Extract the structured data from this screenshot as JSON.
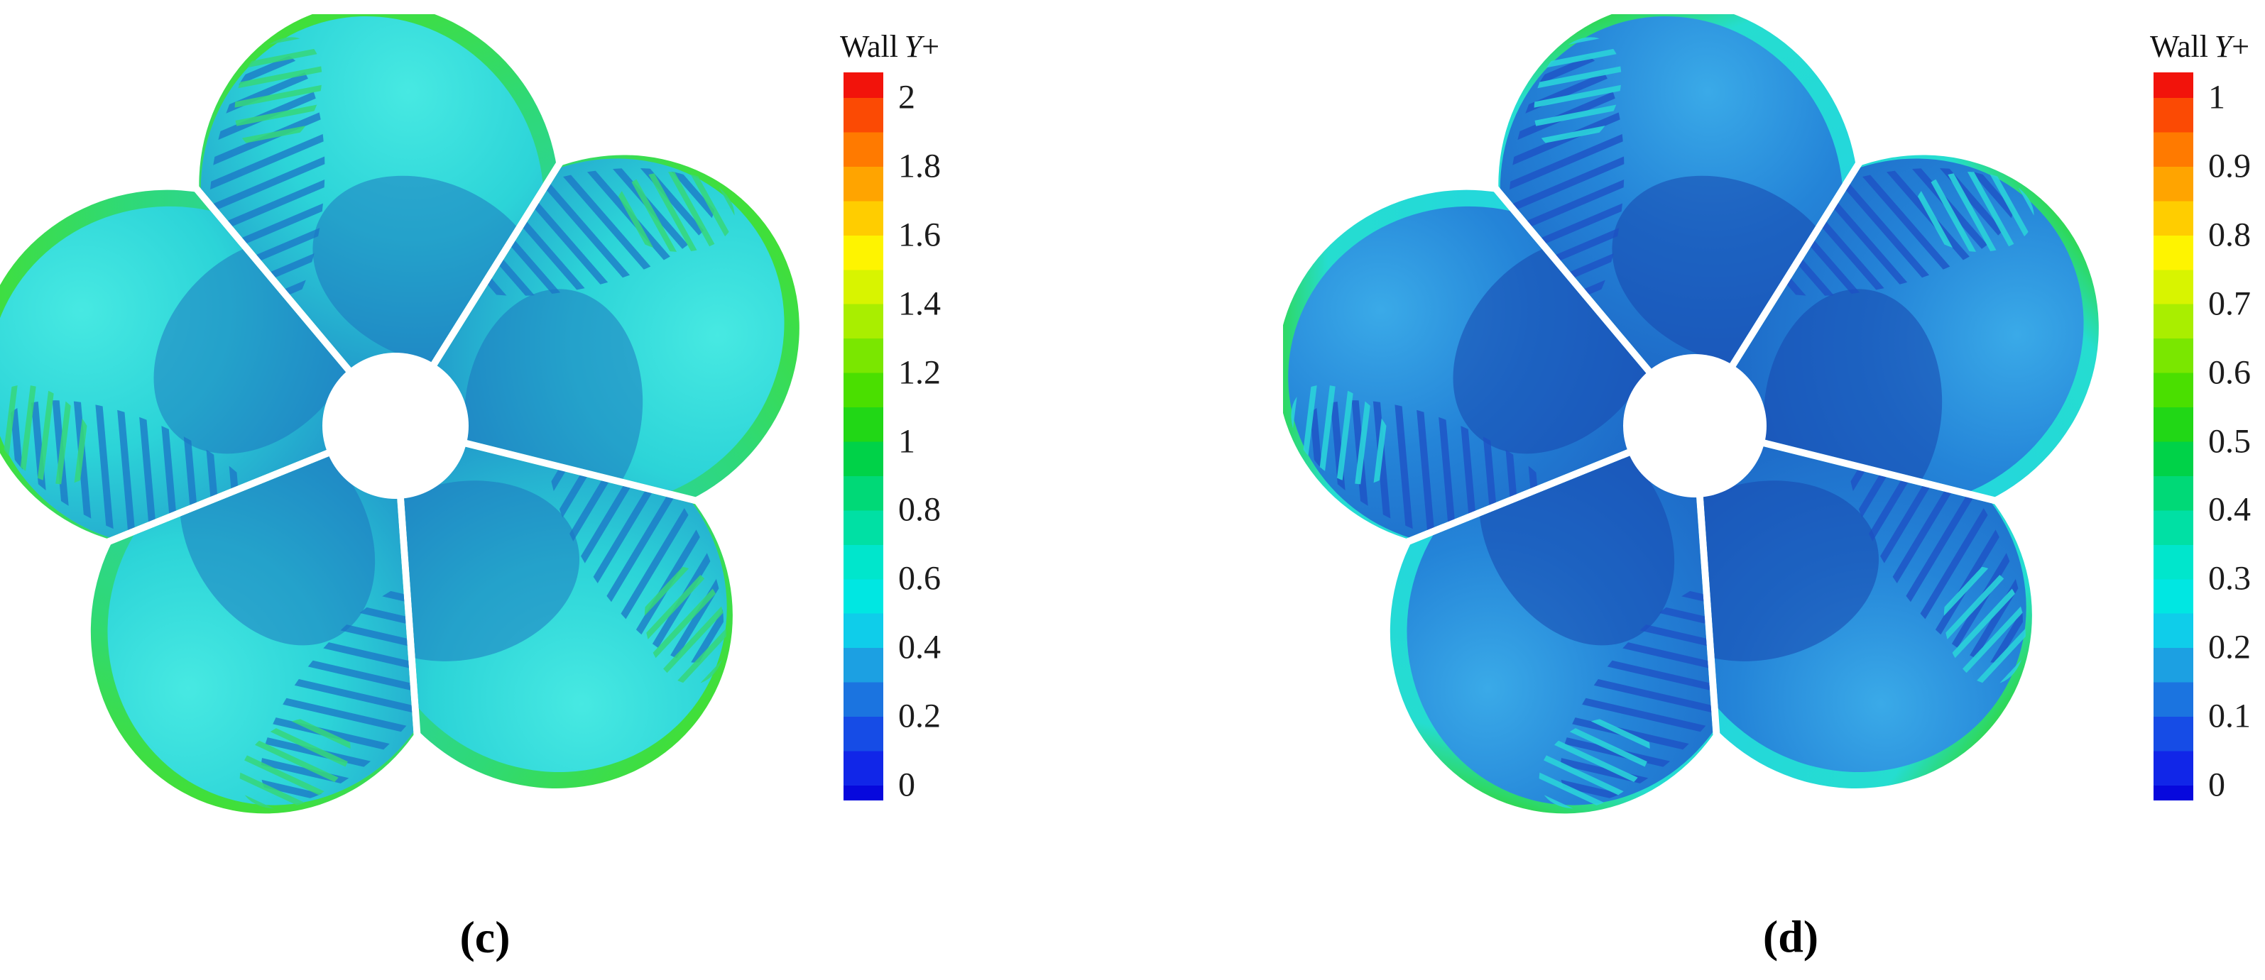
{
  "figure": {
    "panels": [
      {
        "id": "c",
        "caption": "(c)",
        "colorbar": {
          "title_prefix": "Wall",
          "title_symbol": "Y",
          "title_suffix": "+",
          "tick_labels": [
            "2",
            "1.8",
            "1.6",
            "1.4",
            "1.2",
            "1",
            "0.8",
            "0.6",
            "0.4",
            "0.2",
            "0"
          ]
        }
      },
      {
        "id": "d",
        "caption": "(d)",
        "colorbar": {
          "title_prefix": "Wall",
          "title_symbol": "Y",
          "title_suffix": "+",
          "tick_labels": [
            "1",
            "0.9",
            "0.8",
            "0.7",
            "0.6",
            "0.5",
            "0.4",
            "0.3",
            "0.2",
            "0.1",
            "0"
          ]
        }
      }
    ]
  },
  "colormap": {
    "band_colors": [
      "#f2130b",
      "#fb4a04",
      "#ff7a00",
      "#ffa400",
      "#ffcd00",
      "#fef400",
      "#d8f400",
      "#a9ee00",
      "#7ae700",
      "#4adf00",
      "#21d716",
      "#00d248",
      "#00d977",
      "#00e0a4",
      "#00e6cc",
      "#00e7e2",
      "#0fcdea",
      "#1ca0e2",
      "#1b74e0",
      "#164ce6",
      "#1126e8",
      "#0708dd"
    ]
  },
  "palette": {
    "hub": "#ffffff",
    "background": "#ffffff",
    "tick_text": "#1c1c1c",
    "left": {
      "body_outer": "#47e9e2",
      "body_mid": "#2cd4d8",
      "body_inner": "#1f8dc8",
      "rim_tip": "#41df38",
      "rim_mid": "#2fd976",
      "rim_low": "#29cfb4",
      "patch": "#1b6fbe",
      "streak": "#1b74c6",
      "streak_hi": "#35d77a"
    },
    "right": {
      "body_outer": "#3aaae8",
      "body_mid": "#2484d8",
      "body_inner": "#1c64c4",
      "rim_tip": "#2fd855",
      "rim_mid": "#25ddd0",
      "rim_low": "#23d2e6",
      "patch": "#1747ae",
      "streak": "#1d4fc4",
      "streak_hi": "#2ad2da"
    }
  },
  "chart_data": [
    {
      "type": "heatmap",
      "panel_label": "(c)",
      "title": "Wall Y+",
      "subject": "Wall Y+ contour on a 5-blade propeller surface, front view, white hub at center",
      "colorbar": {
        "title": "Wall Y+",
        "orientation": "vertical",
        "position": "right",
        "ticks": [
          2,
          1.8,
          1.6,
          1.4,
          1.2,
          1,
          0.8,
          0.6,
          0.4,
          0.2,
          0
        ],
        "labeled_range": [
          0,
          2
        ],
        "quantized_bands": 22
      },
      "observed_values": {
        "blade_body": "0.3-0.9 (cyan/teal)",
        "leading_edge_rim": "1.0-1.8 (green to yellow)",
        "near_hub_and_trailing_streaks": "0.1-0.4 (blue patches)"
      }
    },
    {
      "type": "heatmap",
      "panel_label": "(d)",
      "title": "Wall Y+",
      "subject": "Wall Y+ contour on a 5-blade propeller surface, front view, white hub at center",
      "colorbar": {
        "title": "Wall Y+",
        "orientation": "vertical",
        "position": "right",
        "ticks": [
          1,
          0.9,
          0.8,
          0.7,
          0.6,
          0.5,
          0.4,
          0.3,
          0.2,
          0.1,
          0
        ],
        "labeled_range": [
          0,
          1
        ],
        "quantized_bands": 22
      },
      "observed_values": {
        "blade_body": "0.1-0.45 (blue)",
        "leading_edge_rim": "0.5-0.8 (cyan to green)",
        "near_hub_and_trailing_streaks": "0.02-0.2 (dark blue patches)"
      }
    }
  ]
}
